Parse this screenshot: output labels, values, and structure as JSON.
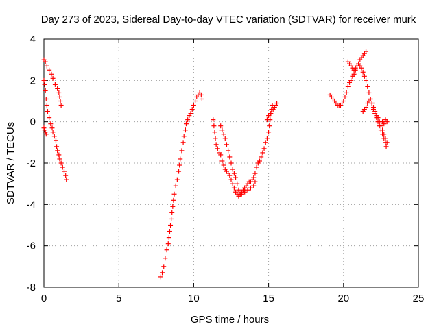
{
  "chart_data": {
    "type": "scatter",
    "title": "Day 273 of 2023, Sidereal Day-to-day VTEC variation (SDTVAR) for receiver murk",
    "xlabel": "GPS time / hours",
    "ylabel": "SDTVAR / TECUs",
    "xlim": [
      0,
      25
    ],
    "ylim": [
      -8,
      4
    ],
    "xticks": [
      0,
      5,
      10,
      15,
      20,
      25
    ],
    "yticks": [
      -8,
      -6,
      -4,
      -2,
      0,
      2,
      4
    ],
    "grid": true,
    "marker": "+",
    "color": "#ff0000",
    "segments": [
      [
        [
          0.0,
          3.0
        ],
        [
          0.1,
          2.9
        ],
        [
          0.2,
          2.7
        ],
        [
          0.35,
          2.5
        ],
        [
          0.5,
          2.3
        ],
        [
          0.6,
          2.1
        ],
        [
          0.75,
          1.8
        ],
        [
          0.9,
          1.6
        ],
        [
          1.0,
          1.4
        ],
        [
          1.05,
          1.2
        ],
        [
          1.1,
          1.0
        ],
        [
          1.15,
          0.8
        ]
      ],
      [
        [
          0.0,
          2.0
        ],
        [
          0.05,
          1.8
        ],
        [
          0.1,
          1.5
        ],
        [
          0.15,
          1.1
        ],
        [
          0.2,
          0.8
        ],
        [
          0.25,
          0.5
        ],
        [
          0.35,
          0.2
        ],
        [
          0.45,
          -0.1
        ],
        [
          0.55,
          -0.3
        ],
        [
          0.6,
          -0.5
        ],
        [
          0.7,
          -0.7
        ],
        [
          0.8,
          -0.9
        ],
        [
          0.85,
          -1.2
        ],
        [
          0.9,
          -1.4
        ],
        [
          1.0,
          -1.6
        ],
        [
          1.05,
          -1.8
        ],
        [
          1.15,
          -2.0
        ],
        [
          1.25,
          -2.2
        ],
        [
          1.35,
          -2.4
        ],
        [
          1.45,
          -2.6
        ],
        [
          1.5,
          -2.8
        ]
      ],
      [
        [
          0.0,
          -0.3
        ],
        [
          0.05,
          -0.4
        ],
        [
          0.1,
          -0.5
        ],
        [
          0.15,
          -0.6
        ]
      ],
      [
        [
          7.8,
          -7.5
        ],
        [
          7.9,
          -7.3
        ],
        [
          8.0,
          -7.0
        ],
        [
          8.1,
          -6.6
        ],
        [
          8.2,
          -6.2
        ],
        [
          8.3,
          -5.9
        ],
        [
          8.35,
          -5.6
        ],
        [
          8.4,
          -5.3
        ],
        [
          8.45,
          -5.0
        ],
        [
          8.5,
          -4.7
        ],
        [
          8.55,
          -4.4
        ],
        [
          8.6,
          -4.1
        ],
        [
          8.65,
          -3.8
        ],
        [
          8.7,
          -3.5
        ],
        [
          8.8,
          -3.1
        ],
        [
          8.9,
          -2.8
        ],
        [
          9.0,
          -2.4
        ],
        [
          9.05,
          -2.1
        ],
        [
          9.1,
          -1.8
        ],
        [
          9.2,
          -1.4
        ],
        [
          9.3,
          -1.0
        ],
        [
          9.35,
          -0.7
        ],
        [
          9.45,
          -0.4
        ],
        [
          9.5,
          -0.1
        ],
        [
          9.6,
          0.1
        ],
        [
          9.7,
          0.3
        ],
        [
          9.8,
          0.4
        ],
        [
          9.9,
          0.6
        ],
        [
          10.0,
          0.8
        ],
        [
          10.1,
          1.0
        ],
        [
          10.2,
          1.2
        ],
        [
          10.3,
          1.3
        ],
        [
          10.4,
          1.4
        ],
        [
          10.5,
          1.3
        ],
        [
          10.55,
          1.1
        ]
      ],
      [
        [
          11.3,
          0.1
        ],
        [
          11.35,
          -0.2
        ],
        [
          11.4,
          -0.5
        ],
        [
          11.45,
          -0.8
        ],
        [
          11.5,
          -1.1
        ],
        [
          11.6,
          -1.3
        ],
        [
          11.7,
          -1.5
        ],
        [
          11.8,
          -1.6
        ],
        [
          11.9,
          -1.9
        ],
        [
          12.0,
          -2.1
        ],
        [
          12.1,
          -2.3
        ],
        [
          12.2,
          -2.4
        ],
        [
          12.3,
          -2.5
        ],
        [
          12.4,
          -2.6
        ],
        [
          12.5,
          -2.8
        ],
        [
          12.6,
          -3.0
        ],
        [
          12.7,
          -3.2
        ],
        [
          12.8,
          -3.4
        ],
        [
          12.9,
          -3.5
        ],
        [
          13.0,
          -3.6
        ],
        [
          13.1,
          -3.5
        ],
        [
          13.2,
          -3.4
        ],
        [
          13.3,
          -3.3
        ],
        [
          13.4,
          -3.2
        ],
        [
          13.5,
          -3.1
        ],
        [
          13.6,
          -3.0
        ],
        [
          13.7,
          -2.9
        ],
        [
          13.8,
          -2.9
        ],
        [
          13.9,
          -2.8
        ],
        [
          14.0,
          -2.7
        ],
        [
          14.1,
          -2.5
        ],
        [
          14.2,
          -2.2
        ],
        [
          14.3,
          -2.0
        ],
        [
          14.4,
          -1.9
        ],
        [
          14.5,
          -1.7
        ],
        [
          14.6,
          -1.5
        ],
        [
          14.7,
          -1.3
        ],
        [
          14.8,
          -1.0
        ],
        [
          14.9,
          -0.8
        ],
        [
          15.0,
          -0.5
        ],
        [
          15.05,
          -0.2
        ],
        [
          15.1,
          0.1
        ],
        [
          15.15,
          0.4
        ],
        [
          15.2,
          0.6
        ],
        [
          15.25,
          0.8
        ]
      ],
      [
        [
          11.8,
          -0.2
        ],
        [
          11.9,
          -0.4
        ],
        [
          12.0,
          -0.6
        ],
        [
          12.1,
          -0.8
        ],
        [
          12.2,
          -1.1
        ],
        [
          12.3,
          -1.4
        ],
        [
          12.4,
          -1.7
        ],
        [
          12.5,
          -2.0
        ],
        [
          12.6,
          -2.3
        ],
        [
          12.7,
          -2.5
        ],
        [
          12.8,
          -2.7
        ],
        [
          12.9,
          -3.0
        ],
        [
          13.0,
          -3.3
        ],
        [
          13.1,
          -3.5
        ],
        [
          13.2,
          -3.5
        ],
        [
          13.4,
          -3.4
        ],
        [
          13.6,
          -3.3
        ],
        [
          13.8,
          -3.2
        ],
        [
          14.0,
          -3.1
        ],
        [
          14.1,
          -2.9
        ]
      ],
      [
        [
          14.9,
          0.1
        ],
        [
          15.0,
          0.3
        ],
        [
          15.1,
          0.4
        ],
        [
          15.2,
          0.6
        ],
        [
          15.3,
          0.6
        ],
        [
          15.4,
          0.7
        ],
        [
          15.5,
          0.8
        ],
        [
          15.55,
          0.9
        ]
      ],
      [
        [
          19.1,
          1.3
        ],
        [
          19.2,
          1.2
        ],
        [
          19.3,
          1.1
        ],
        [
          19.4,
          1.0
        ],
        [
          19.5,
          0.9
        ],
        [
          19.6,
          0.8
        ],
        [
          19.7,
          0.8
        ],
        [
          19.8,
          0.8
        ],
        [
          19.9,
          0.9
        ],
        [
          20.0,
          1.0
        ],
        [
          20.1,
          1.2
        ],
        [
          20.2,
          1.4
        ],
        [
          20.3,
          1.7
        ],
        [
          20.4,
          1.9
        ],
        [
          20.5,
          2.0
        ],
        [
          20.6,
          2.2
        ],
        [
          20.7,
          2.3
        ],
        [
          20.8,
          2.5
        ],
        [
          20.9,
          2.7
        ],
        [
          21.0,
          2.8
        ],
        [
          21.1,
          3.0
        ],
        [
          21.2,
          3.1
        ],
        [
          21.3,
          3.2
        ],
        [
          21.4,
          3.3
        ],
        [
          21.5,
          3.4
        ]
      ],
      [
        [
          20.3,
          2.9
        ],
        [
          20.4,
          2.8
        ],
        [
          20.5,
          2.7
        ],
        [
          20.6,
          2.6
        ],
        [
          20.7,
          2.5
        ],
        [
          20.8,
          2.6
        ],
        [
          20.9,
          2.7
        ],
        [
          21.0,
          2.8
        ],
        [
          21.1,
          2.7
        ],
        [
          21.2,
          2.6
        ],
        [
          21.3,
          2.4
        ],
        [
          21.4,
          2.2
        ],
        [
          21.5,
          2.0
        ],
        [
          21.6,
          1.7
        ],
        [
          21.7,
          1.4
        ],
        [
          21.8,
          1.1
        ],
        [
          21.9,
          0.9
        ],
        [
          22.0,
          0.6
        ],
        [
          22.1,
          0.4
        ],
        [
          22.2,
          0.2
        ],
        [
          22.3,
          0.0
        ],
        [
          22.4,
          -0.2
        ],
        [
          22.5,
          -0.4
        ],
        [
          22.6,
          -0.6
        ],
        [
          22.7,
          -0.8
        ],
        [
          22.8,
          -1.0
        ],
        [
          22.85,
          -1.2
        ]
      ],
      [
        [
          21.3,
          0.5
        ],
        [
          21.4,
          0.6
        ],
        [
          21.5,
          0.7
        ],
        [
          21.6,
          0.9
        ],
        [
          21.7,
          1.0
        ],
        [
          21.8,
          1.1
        ],
        [
          21.9,
          0.9
        ],
        [
          22.0,
          0.7
        ],
        [
          22.1,
          0.5
        ],
        [
          22.2,
          0.3
        ],
        [
          22.3,
          0.2
        ],
        [
          22.4,
          0.0
        ],
        [
          22.5,
          -0.2
        ],
        [
          22.6,
          -0.4
        ],
        [
          22.7,
          -0.6
        ],
        [
          22.8,
          -0.8
        ],
        [
          22.9,
          -1.0
        ]
      ],
      [
        [
          22.6,
          0.0
        ],
        [
          22.7,
          -0.1
        ],
        [
          22.8,
          0.1
        ],
        [
          22.9,
          0.0
        ]
      ]
    ]
  }
}
